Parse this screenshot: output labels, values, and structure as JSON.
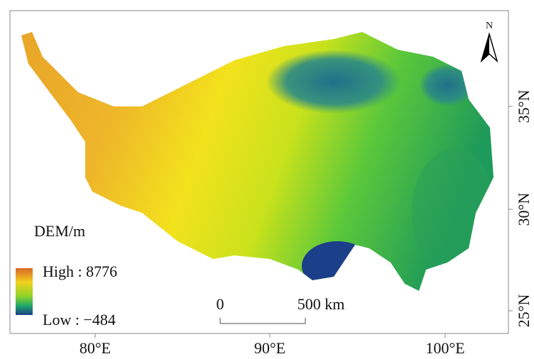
{
  "map": {
    "north_label": "N",
    "legend": {
      "title": "DEM/m",
      "high": "High : 8776",
      "low": "Low : −484"
    },
    "scale_bar": {
      "start": "0",
      "end": "500 km"
    },
    "x_axis": {
      "labels": [
        "80°E",
        "90°E",
        "100°E"
      ]
    },
    "y_axis": {
      "labels": [
        "35°N",
        "30°N",
        "25°N"
      ]
    }
  }
}
